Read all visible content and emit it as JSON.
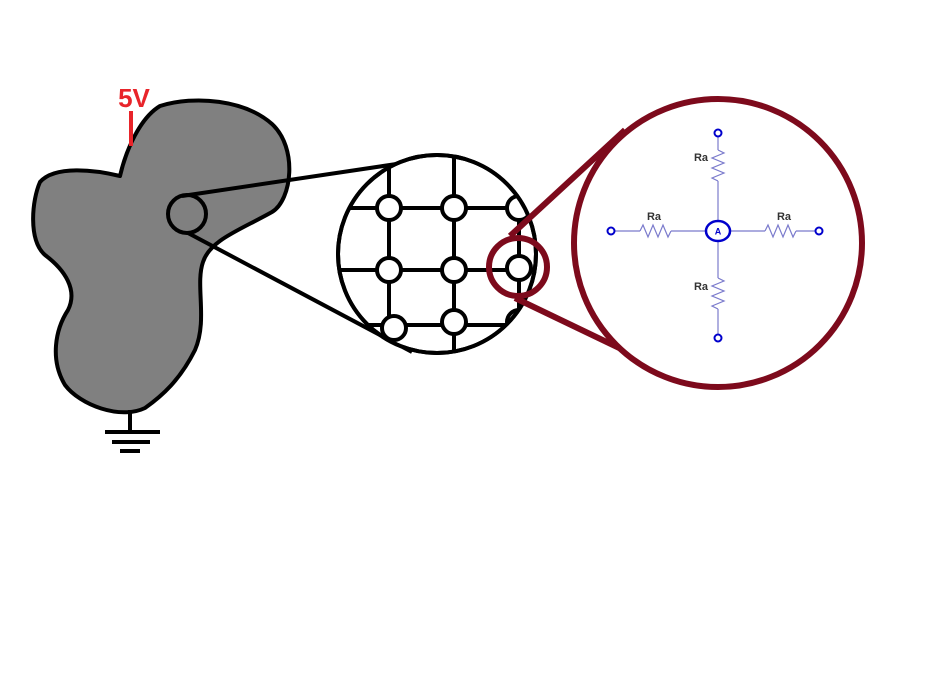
{
  "labels": {
    "voltage": "5V",
    "resistor_top": "Ra",
    "resistor_left": "Ra",
    "resistor_right": "Ra",
    "resistor_bottom": "Ra",
    "node": "A"
  },
  "colors": {
    "background": "#ffffff",
    "blob_fill": "#808080",
    "outline": "#000000",
    "voltage": "#e8242a",
    "zoom_ring": "#7d0a1c",
    "circuit": "#0000cc",
    "circuit_wire": "#7a7acc"
  },
  "icons": {
    "ground": "ground-symbol-icon",
    "voltage_lead": "voltage-lead-icon"
  }
}
